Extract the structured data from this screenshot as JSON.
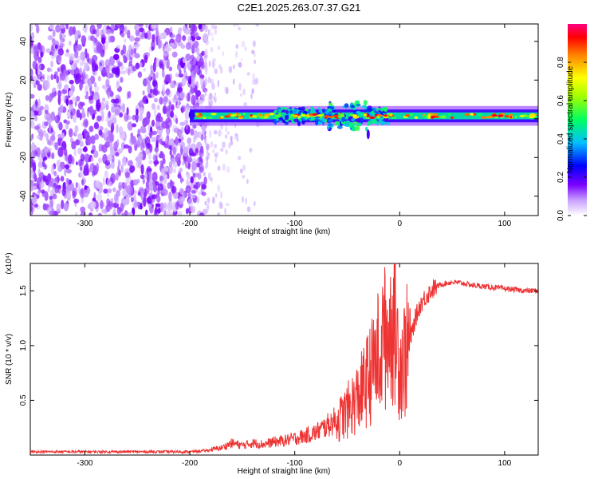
{
  "title": "C2E1.2025.263.07.37.G21",
  "chart_data": [
    {
      "type": "heatmap",
      "xlabel": "Height of straight line (km)",
      "ylabel": "Frequency (Hz)",
      "xlim": [
        -352,
        132
      ],
      "ylim": [
        -50,
        49
      ],
      "xticks": [
        -300,
        -200,
        -100,
        0,
        100
      ],
      "yticks": [
        -40,
        -20,
        0,
        20,
        40
      ],
      "xticklabels": [
        "-300",
        "-200",
        "-100",
        "0",
        "100"
      ],
      "yticklabels": [
        "-40",
        "-20",
        "0",
        "20",
        "40"
      ],
      "colorbar": {
        "label": "Normalized spectral amplitude",
        "range": [
          0,
          1
        ],
        "ticks": [
          0.0,
          0.2,
          0.4,
          0.6,
          0.8
        ],
        "ticklabels": [
          "0.0",
          "0.2",
          "0.4",
          "0.6",
          "0.8"
        ],
        "colors": [
          "#ffffff",
          "#7a00ff",
          "#0000ff",
          "#00d0ff",
          "#00ff50",
          "#a0ff00",
          "#ffff00",
          "#ff8000",
          "#ff0000",
          "#ff0080"
        ]
      },
      "regions": [
        {
          "name": "noise",
          "x_range": [
            -352,
            -185
          ],
          "y_range": [
            -50,
            49
          ],
          "amplitude": 0.15
        },
        {
          "name": "sparse-noise",
          "x_range": [
            -185,
            -135
          ],
          "y_range": [
            -50,
            49
          ],
          "amplitude": 0.05
        },
        {
          "name": "carrier",
          "x_range": [
            -200,
            132
          ],
          "frequency_center": 1.5,
          "half_width": 3,
          "amplitude": 0.9
        }
      ]
    },
    {
      "type": "line",
      "xlabel": "Height of straight line (km)",
      "ylabel": "SNR (10 * v/v)",
      "y_multiplier": "(x10⁴)",
      "xlim": [
        -352,
        132
      ],
      "ylim": [
        0,
        1.75
      ],
      "xticks": [
        -300,
        -200,
        -100,
        0,
        100
      ],
      "yticks": [
        0.5,
        1.0,
        1.5
      ],
      "xticklabels": [
        "-300",
        "-200",
        "-100",
        "0",
        "100"
      ],
      "yticklabels": [
        "0.5",
        "1.0",
        "1.5"
      ],
      "color": "#ee3333",
      "x": [
        -352,
        -300,
        -250,
        -200,
        -185,
        -170,
        -160,
        -150,
        -140,
        -130,
        -120,
        -110,
        -100,
        -90,
        -80,
        -70,
        -60,
        -50,
        -40,
        -35,
        -30,
        -25,
        -20,
        -15,
        -10,
        -5,
        0,
        5,
        10,
        15,
        20,
        25,
        30,
        35,
        40,
        50,
        60,
        70,
        80,
        90,
        100,
        110,
        120,
        132
      ],
      "values": [
        0.03,
        0.03,
        0.03,
        0.03,
        0.04,
        0.06,
        0.1,
        0.08,
        0.1,
        0.09,
        0.11,
        0.12,
        0.14,
        0.16,
        0.19,
        0.24,
        0.3,
        0.4,
        0.52,
        0.6,
        0.7,
        0.8,
        0.95,
        1.05,
        1.15,
        1.25,
        0.85,
        0.9,
        1.05,
        1.25,
        1.38,
        1.45,
        1.5,
        1.54,
        1.56,
        1.58,
        1.57,
        1.55,
        1.54,
        1.53,
        1.52,
        1.51,
        1.5,
        1.5
      ]
    }
  ]
}
